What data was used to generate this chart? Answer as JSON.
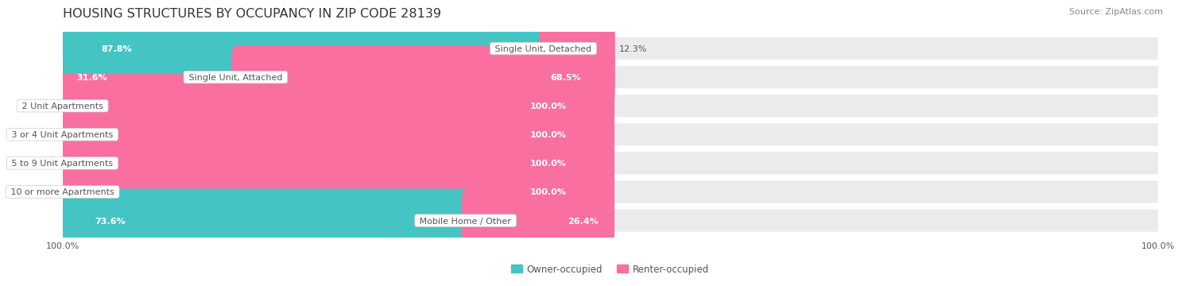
{
  "title": "HOUSING STRUCTURES BY OCCUPANCY IN ZIP CODE 28139",
  "source": "Source: ZipAtlas.com",
  "categories": [
    "Single Unit, Detached",
    "Single Unit, Attached",
    "2 Unit Apartments",
    "3 or 4 Unit Apartments",
    "5 to 9 Unit Apartments",
    "10 or more Apartments",
    "Mobile Home / Other"
  ],
  "owner_pct": [
    87.8,
    31.6,
    0.0,
    0.0,
    0.0,
    0.0,
    73.6
  ],
  "renter_pct": [
    12.3,
    68.5,
    100.0,
    100.0,
    100.0,
    100.0,
    26.4
  ],
  "owner_color": "#45C4C4",
  "renter_color": "#F86FA0",
  "renter_color_light": "#FAB8CF",
  "row_bg_color": "#EBEBEB",
  "title_fontsize": 11.5,
  "label_fontsize": 8.0,
  "value_fontsize": 8.0,
  "tick_fontsize": 8.0,
  "source_fontsize": 8.0,
  "legend_fontsize": 8.5,
  "background_color": "#FFFFFF",
  "text_dark": "#555555",
  "text_light": "#FFFFFF"
}
